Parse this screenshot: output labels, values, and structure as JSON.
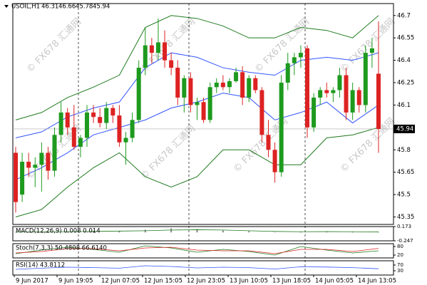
{
  "chart_data": {
    "type": "candlestick",
    "symbol": "USOIL,H1",
    "ohlc_header": [
      46.31,
      46.66,
      45.78,
      45.94
    ],
    "last_price": 45.94,
    "watermark": "© FX678 汇通网",
    "up_color": "#1e9a1e",
    "down_color": "#dd2222",
    "ylim": [
      45.3,
      46.78
    ],
    "yticks": [
      45.35,
      45.5,
      45.65,
      45.8,
      46.1,
      46.25,
      46.4,
      46.55,
      46.7
    ],
    "x_labels": [
      "9 Jun 2017",
      "9 Jun 19:05",
      "12 Jun 07:05",
      "12 Jun 15:05",
      "12 Jun 23:05",
      "13 Jun 10:05",
      "13 Jun 18:05",
      "14 Jun 05:05",
      "14 Jun 13:05"
    ],
    "candles": [
      [
        45.78,
        45.82,
        45.38,
        45.45
      ],
      [
        45.5,
        45.78,
        45.45,
        45.72
      ],
      [
        45.72,
        45.78,
        45.62,
        45.68
      ],
      [
        45.68,
        45.75,
        45.55,
        45.7
      ],
      [
        45.7,
        45.85,
        45.52,
        45.78
      ],
      [
        45.78,
        45.82,
        45.6,
        45.66
      ],
      [
        45.66,
        45.95,
        45.62,
        45.9
      ],
      [
        45.9,
        46.12,
        45.85,
        46.05
      ],
      [
        46.05,
        46.08,
        45.9,
        45.95
      ],
      [
        45.95,
        46.1,
        45.8,
        45.82
      ],
      [
        45.82,
        45.9,
        45.75,
        45.88
      ],
      [
        45.88,
        46.1,
        45.82,
        46.05
      ],
      [
        46.05,
        46.1,
        45.98,
        46.02
      ],
      [
        46.02,
        46.08,
        45.95,
        45.98
      ],
      [
        45.98,
        46.12,
        45.94,
        46.08
      ],
      [
        46.08,
        46.1,
        45.98,
        46.03
      ],
      [
        46.03,
        46.1,
        45.82,
        45.85
      ],
      [
        45.85,
        45.92,
        45.7,
        45.88
      ],
      [
        45.88,
        46.05,
        45.85,
        46.0
      ],
      [
        46.0,
        46.4,
        45.98,
        46.35
      ],
      [
        46.35,
        46.62,
        46.3,
        46.5
      ],
      [
        46.5,
        46.55,
        46.38,
        46.45
      ],
      [
        46.45,
        46.68,
        46.4,
        46.52
      ],
      [
        46.52,
        46.6,
        46.35,
        46.4
      ],
      [
        46.4,
        46.45,
        46.3,
        46.35
      ],
      [
        46.35,
        46.4,
        46.1,
        46.15
      ],
      [
        46.15,
        46.3,
        46.05,
        46.28
      ],
      [
        46.28,
        46.32,
        46.05,
        46.1
      ],
      [
        46.1,
        46.15,
        46.0,
        46.12
      ],
      [
        46.12,
        46.15,
        45.98,
        46.0
      ],
      [
        46.0,
        46.25,
        45.98,
        46.22
      ],
      [
        46.22,
        46.28,
        46.18,
        46.25
      ],
      [
        46.25,
        46.3,
        46.2,
        46.22
      ],
      [
        46.22,
        46.28,
        46.18,
        46.26
      ],
      [
        46.26,
        46.35,
        46.25,
        46.32
      ],
      [
        46.32,
        46.36,
        46.1,
        46.15
      ],
      [
        46.15,
        46.3,
        46.12,
        46.28
      ],
      [
        46.28,
        46.3,
        46.18,
        46.2
      ],
      [
        46.2,
        46.22,
        45.85,
        45.9
      ],
      [
        45.9,
        46.0,
        45.75,
        45.8
      ],
      [
        45.8,
        45.85,
        45.58,
        45.65
      ],
      [
        45.65,
        46.3,
        45.62,
        46.25
      ],
      [
        46.25,
        46.45,
        46.2,
        46.38
      ],
      [
        46.38,
        46.45,
        46.3,
        46.42
      ],
      [
        46.42,
        46.5,
        46.35,
        46.45
      ],
      [
        46.48,
        46.5,
        45.88,
        45.95
      ],
      [
        45.95,
        46.18,
        45.92,
        46.15
      ],
      [
        46.15,
        46.22,
        46.1,
        46.2
      ],
      [
        46.2,
        46.25,
        46.15,
        46.18
      ],
      [
        46.18,
        46.22,
        46.12,
        46.2
      ],
      [
        46.2,
        46.35,
        46.15,
        46.3
      ],
      [
        46.3,
        46.35,
        46.0,
        46.05
      ],
      [
        46.05,
        46.25,
        46.0,
        46.2
      ],
      [
        46.2,
        46.22,
        46.05,
        46.1
      ],
      [
        46.1,
        46.5,
        46.05,
        46.45
      ],
      [
        46.45,
        46.55,
        46.35,
        46.48
      ],
      [
        46.31,
        46.66,
        45.78,
        45.94
      ]
    ],
    "indicator_x": [
      0,
      4,
      8,
      12,
      16,
      20,
      24,
      28,
      32,
      36,
      40,
      44,
      48,
      52,
      56
    ],
    "bands": [
      {
        "color": "#1f7a1f",
        "values": [
          46.0,
          46.05,
          46.15,
          46.22,
          46.3,
          46.62,
          46.7,
          46.68,
          46.63,
          46.55,
          46.55,
          46.62,
          46.6,
          46.55,
          46.7
        ]
      },
      {
        "color": "#3355ff",
        "values": [
          45.88,
          45.92,
          46.02,
          46.08,
          46.12,
          46.35,
          46.45,
          46.42,
          46.35,
          46.32,
          46.3,
          46.4,
          46.42,
          46.4,
          46.45
        ]
      },
      {
        "color": "#3355ff",
        "values": [
          45.6,
          45.68,
          45.78,
          45.9,
          45.95,
          46.0,
          46.08,
          46.12,
          46.18,
          46.15,
          46.0,
          46.05,
          46.12,
          45.98,
          46.1
        ]
      },
      {
        "color": "#1f7a1f",
        "values": [
          45.35,
          45.4,
          45.55,
          45.68,
          45.78,
          45.62,
          45.55,
          45.62,
          45.8,
          45.8,
          45.7,
          45.7,
          45.88,
          45.9,
          45.95
        ]
      }
    ],
    "panels": [
      {
        "label": "MACD(12,26,9) 0.008 0.014",
        "ylim": [
          -0.247,
          0.173
        ],
        "yticks": [
          -0.247,
          0.173
        ],
        "series": [
          {
            "kind": "hist",
            "color": "#888888",
            "values": [
              0.01,
              0.02,
              0.03,
              0.05,
              0.04,
              0.08,
              0.12,
              0.1,
              0.06,
              0.04,
              0.01,
              0.02,
              0.03,
              0.02,
              0.01
            ]
          },
          {
            "kind": "line",
            "color": "#1f7a1f",
            "values": [
              0.01,
              0.015,
              0.02,
              0.03,
              0.04,
              0.05,
              0.07,
              0.08,
              0.07,
              0.05,
              0.03,
              0.02,
              0.025,
              0.02,
              0.014
            ]
          }
        ]
      },
      {
        "label": "Stoch(7,3,3) 50.4808 66.6140",
        "ylim": [
          0,
          100
        ],
        "yticks": [
          20,
          80
        ],
        "series": [
          {
            "kind": "line",
            "color": "#1f7a1f",
            "values": [
              30,
              55,
              75,
              60,
              40,
              85,
              70,
              40,
              60,
              45,
              20,
              80,
              55,
              35,
              50
            ]
          },
          {
            "kind": "line",
            "color": "#dd2222",
            "values": [
              35,
              45,
              65,
              65,
              50,
              70,
              75,
              55,
              50,
              50,
              30,
              60,
              60,
              45,
              67
            ]
          }
        ]
      },
      {
        "label": "RSI(14) 43.8112",
        "ylim": [
          0,
          100
        ],
        "yticks": [
          30,
          70
        ],
        "series": [
          {
            "kind": "line",
            "color": "#3355ff",
            "values": [
              40,
              48,
              55,
              52,
              48,
              65,
              60,
              50,
              55,
              52,
              42,
              58,
              56,
              52,
              44
            ]
          }
        ]
      }
    ]
  }
}
